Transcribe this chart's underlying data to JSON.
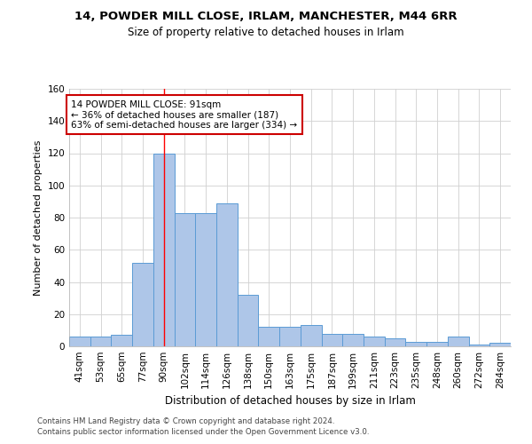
{
  "title1": "14, POWDER MILL CLOSE, IRLAM, MANCHESTER, M44 6RR",
  "title2": "Size of property relative to detached houses in Irlam",
  "xlabel": "Distribution of detached houses by size in Irlam",
  "ylabel": "Number of detached properties",
  "categories": [
    "41sqm",
    "53sqm",
    "65sqm",
    "77sqm",
    "90sqm",
    "102sqm",
    "114sqm",
    "126sqm",
    "138sqm",
    "150sqm",
    "163sqm",
    "175sqm",
    "187sqm",
    "199sqm",
    "211sqm",
    "223sqm",
    "235sqm",
    "248sqm",
    "260sqm",
    "272sqm",
    "284sqm"
  ],
  "values": [
    6,
    6,
    7,
    52,
    120,
    83,
    83,
    89,
    32,
    12,
    12,
    13,
    8,
    8,
    6,
    5,
    3,
    3,
    6,
    1,
    2
  ],
  "bar_color": "#aec6e8",
  "bar_edge_color": "#5b9bd5",
  "red_line_index": 4,
  "annotation_text": "14 POWDER MILL CLOSE: 91sqm\n← 36% of detached houses are smaller (187)\n63% of semi-detached houses are larger (334) →",
  "annotation_box_color": "#ffffff",
  "annotation_box_edge_color": "#cc0000",
  "footer1": "Contains HM Land Registry data © Crown copyright and database right 2024.",
  "footer2": "Contains public sector information licensed under the Open Government Licence v3.0.",
  "ylim": [
    0,
    160
  ],
  "yticks": [
    0,
    20,
    40,
    60,
    80,
    100,
    120,
    140,
    160
  ],
  "background_color": "#ffffff",
  "grid_color": "#d0d0d0",
  "title1_fontsize": 9.5,
  "title2_fontsize": 8.5,
  "xlabel_fontsize": 8.5,
  "ylabel_fontsize": 8.0,
  "tick_fontsize": 7.5,
  "footer_fontsize": 6.2,
  "ann_fontsize": 7.5
}
